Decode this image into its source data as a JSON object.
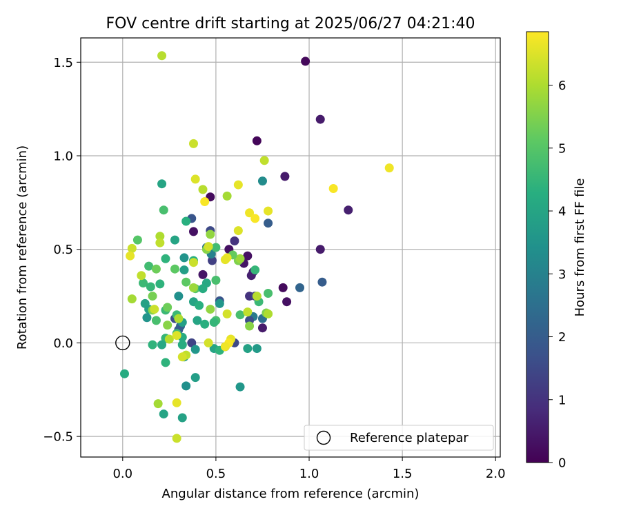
{
  "chart_data": {
    "type": "scatter",
    "title": "FOV centre drift starting at 2025/06/27 04:21:40",
    "xlabel": "Angular distance from reference (arcmin)",
    "ylabel": "Rotation from reference (arcmin)",
    "xlim": [
      -0.225,
      2.025
    ],
    "ylim": [
      -0.61,
      1.63
    ],
    "xticks": [
      0.0,
      0.5,
      1.0,
      1.5,
      2.0
    ],
    "xtick_labels": [
      "0.0",
      "0.5",
      "1.0",
      "1.5",
      "2.0"
    ],
    "yticks": [
      -0.5,
      0.0,
      0.5,
      1.0,
      1.5
    ],
    "ytick_labels": [
      "−0.5",
      "0.0",
      "0.5",
      "1.0",
      "1.5"
    ],
    "grid": true,
    "legend": {
      "placement": "lower-right",
      "label": "Reference platepar"
    },
    "reference_point": {
      "x": 0.0,
      "y": 0.0
    },
    "colorbar": {
      "label": "Hours from first FF file",
      "colormap": "viridis",
      "range": [
        0,
        6.85
      ],
      "ticks": [
        0,
        1,
        2,
        3,
        4,
        5,
        6
      ],
      "tick_labels": [
        "0",
        "1",
        "2",
        "3",
        "4",
        "5",
        "6"
      ]
    },
    "points": [
      {
        "x": 0.98,
        "y": 1.505,
        "h": 0.15
      },
      {
        "x": 1.06,
        "y": 1.195,
        "h": 0.5
      },
      {
        "x": 0.72,
        "y": 1.08,
        "h": 0.1
      },
      {
        "x": 0.87,
        "y": 0.89,
        "h": 0.5
      },
      {
        "x": 1.21,
        "y": 0.71,
        "h": 0.6
      },
      {
        "x": 0.47,
        "y": 0.78,
        "h": 0.2
      },
      {
        "x": 0.37,
        "y": 0.665,
        "h": 1.8
      },
      {
        "x": 0.38,
        "y": 0.595,
        "h": 0.3
      },
      {
        "x": 0.78,
        "y": 0.64,
        "h": 2.0
      },
      {
        "x": 0.47,
        "y": 0.6,
        "h": 1.5
      },
      {
        "x": 0.6,
        "y": 0.545,
        "h": 1.0
      },
      {
        "x": 1.06,
        "y": 0.5,
        "h": 0.5
      },
      {
        "x": 0.67,
        "y": 0.465,
        "h": 0.3
      },
      {
        "x": 0.65,
        "y": 0.425,
        "h": 0.4
      },
      {
        "x": 0.57,
        "y": 0.5,
        "h": 0.3
      },
      {
        "x": 0.48,
        "y": 0.44,
        "h": 1.3
      },
      {
        "x": 0.69,
        "y": 0.36,
        "h": 0.6
      },
      {
        "x": 0.7,
        "y": 0.38,
        "h": 0.6
      },
      {
        "x": 0.43,
        "y": 0.365,
        "h": 0.4
      },
      {
        "x": 0.86,
        "y": 0.295,
        "h": 0.2
      },
      {
        "x": 0.95,
        "y": 0.295,
        "h": 2.2
      },
      {
        "x": 1.07,
        "y": 0.325,
        "h": 2.0
      },
      {
        "x": 0.88,
        "y": 0.22,
        "h": 0.3
      },
      {
        "x": 0.68,
        "y": 0.25,
        "h": 1.0
      },
      {
        "x": 0.52,
        "y": 0.225,
        "h": 1.8
      },
      {
        "x": 0.7,
        "y": 0.14,
        "h": 2.8
      },
      {
        "x": 0.75,
        "y": 0.13,
        "h": 2.5
      },
      {
        "x": 0.75,
        "y": 0.08,
        "h": 0.5
      },
      {
        "x": 0.6,
        "y": 0.0,
        "h": 1.5
      },
      {
        "x": 0.55,
        "y": -0.02,
        "h": 2.0
      },
      {
        "x": 0.68,
        "y": 0.12,
        "h": 1.6
      },
      {
        "x": 0.71,
        "y": 0.25,
        "h": 1.3
      },
      {
        "x": 0.28,
        "y": 0.13,
        "h": 1.6
      },
      {
        "x": 0.31,
        "y": 0.09,
        "h": 2.2
      },
      {
        "x": 0.3,
        "y": 0.07,
        "h": 2.0
      },
      {
        "x": 0.37,
        "y": 0.0,
        "h": 1.4
      },
      {
        "x": 0.45,
        "y": 0.51,
        "h": 2.5
      },
      {
        "x": 0.475,
        "y": 0.475,
        "h": 3.0
      },
      {
        "x": 0.21,
        "y": 0.85,
        "h": 4.0
      },
      {
        "x": 0.75,
        "y": 0.865,
        "h": 3.3
      },
      {
        "x": 0.22,
        "y": 0.71,
        "h": 4.8
      },
      {
        "x": 0.34,
        "y": 0.65,
        "h": 4.3
      },
      {
        "x": 0.08,
        "y": 0.55,
        "h": 5.0
      },
      {
        "x": 0.28,
        "y": 0.55,
        "h": 4.0
      },
      {
        "x": 0.5,
        "y": 0.51,
        "h": 4.7
      },
      {
        "x": 0.23,
        "y": 0.45,
        "h": 4.4
      },
      {
        "x": 0.33,
        "y": 0.455,
        "h": 3.5
      },
      {
        "x": 0.38,
        "y": 0.44,
        "h": 4.3
      },
      {
        "x": 0.62,
        "y": 0.44,
        "h": 5.5
      },
      {
        "x": 0.63,
        "y": 0.45,
        "h": 5.8
      },
      {
        "x": 0.59,
        "y": 0.47,
        "h": 5.2
      },
      {
        "x": 0.45,
        "y": 0.5,
        "h": 5.6
      },
      {
        "x": 0.47,
        "y": 0.58,
        "h": 5.7
      },
      {
        "x": 0.14,
        "y": 0.41,
        "h": 4.7
      },
      {
        "x": 0.18,
        "y": 0.395,
        "h": 5.3
      },
      {
        "x": 0.28,
        "y": 0.395,
        "h": 5.1
      },
      {
        "x": 0.33,
        "y": 0.39,
        "h": 3.8
      },
      {
        "x": 0.71,
        "y": 0.39,
        "h": 4.5
      },
      {
        "x": 0.11,
        "y": 0.32,
        "h": 4.6
      },
      {
        "x": 0.15,
        "y": 0.3,
        "h": 4.5
      },
      {
        "x": 0.2,
        "y": 0.315,
        "h": 4.4
      },
      {
        "x": 0.34,
        "y": 0.325,
        "h": 5.1
      },
      {
        "x": 0.45,
        "y": 0.32,
        "h": 4.1
      },
      {
        "x": 0.5,
        "y": 0.335,
        "h": 4.8
      },
      {
        "x": 0.16,
        "y": 0.25,
        "h": 5.4
      },
      {
        "x": 0.3,
        "y": 0.25,
        "h": 3.4
      },
      {
        "x": 0.39,
        "y": 0.29,
        "h": 5.0
      },
      {
        "x": 0.43,
        "y": 0.29,
        "h": 4.2
      },
      {
        "x": 0.78,
        "y": 0.265,
        "h": 4.8
      },
      {
        "x": 0.12,
        "y": 0.21,
        "h": 3.9
      },
      {
        "x": 0.38,
        "y": 0.22,
        "h": 4.0
      },
      {
        "x": 0.41,
        "y": 0.2,
        "h": 4.3
      },
      {
        "x": 0.52,
        "y": 0.21,
        "h": 3.6
      },
      {
        "x": 0.14,
        "y": 0.18,
        "h": 3.8
      },
      {
        "x": 0.23,
        "y": 0.175,
        "h": 4.6
      },
      {
        "x": 0.16,
        "y": 0.175,
        "h": 5.5
      },
      {
        "x": 0.47,
        "y": 0.18,
        "h": 5.7
      },
      {
        "x": 0.63,
        "y": 0.15,
        "h": 4.8
      },
      {
        "x": 0.77,
        "y": 0.16,
        "h": 5.5
      },
      {
        "x": 0.24,
        "y": 0.19,
        "h": 5.3
      },
      {
        "x": 0.73,
        "y": 0.22,
        "h": 4.6
      },
      {
        "x": 0.13,
        "y": 0.135,
        "h": 3.5
      },
      {
        "x": 0.18,
        "y": 0.12,
        "h": 4.8
      },
      {
        "x": 0.29,
        "y": 0.15,
        "h": 4.6
      },
      {
        "x": 0.4,
        "y": 0.12,
        "h": 4.0
      },
      {
        "x": 0.5,
        "y": 0.12,
        "h": 4.8
      },
      {
        "x": 0.44,
        "y": 0.1,
        "h": 4.3
      },
      {
        "x": 0.49,
        "y": 0.11,
        "h": 4.5
      },
      {
        "x": 0.32,
        "y": 0.11,
        "h": 3.8
      },
      {
        "x": 0.24,
        "y": 0.095,
        "h": 5.6
      },
      {
        "x": 0.68,
        "y": 0.09,
        "h": 5.6
      },
      {
        "x": 0.23,
        "y": 0.025,
        "h": 4.5
      },
      {
        "x": 0.29,
        "y": 0.05,
        "h": 4.7
      },
      {
        "x": 0.32,
        "y": 0.03,
        "h": 4.2
      },
      {
        "x": 0.16,
        "y": -0.01,
        "h": 4.4
      },
      {
        "x": 0.21,
        "y": -0.01,
        "h": 4.1
      },
      {
        "x": 0.32,
        "y": -0.01,
        "h": 4.2
      },
      {
        "x": 0.49,
        "y": -0.03,
        "h": 4.0
      },
      {
        "x": 0.52,
        "y": -0.04,
        "h": 4.4
      },
      {
        "x": 0.39,
        "y": -0.035,
        "h": 3.6
      },
      {
        "x": 0.67,
        "y": -0.03,
        "h": 3.9
      },
      {
        "x": 0.72,
        "y": -0.03,
        "h": 3.7
      },
      {
        "x": 0.33,
        "y": -0.075,
        "h": 3.6
      },
      {
        "x": 0.01,
        "y": -0.165,
        "h": 4.2
      },
      {
        "x": 0.23,
        "y": -0.105,
        "h": 4.4
      },
      {
        "x": 0.39,
        "y": -0.185,
        "h": 3.8
      },
      {
        "x": 0.34,
        "y": -0.23,
        "h": 3.4
      },
      {
        "x": 0.63,
        "y": -0.235,
        "h": 3.6
      },
      {
        "x": 0.22,
        "y": -0.38,
        "h": 4.0
      },
      {
        "x": 0.32,
        "y": -0.4,
        "h": 3.9
      },
      {
        "x": 0.21,
        "y": 1.535,
        "h": 6.1
      },
      {
        "x": 0.38,
        "y": 1.065,
        "h": 6.3
      },
      {
        "x": 1.43,
        "y": 0.935,
        "h": 6.7
      },
      {
        "x": 0.76,
        "y": 0.975,
        "h": 6.2
      },
      {
        "x": 0.39,
        "y": 0.875,
        "h": 6.5
      },
      {
        "x": 0.43,
        "y": 0.82,
        "h": 6.1
      },
      {
        "x": 0.62,
        "y": 0.845,
        "h": 6.6
      },
      {
        "x": 1.13,
        "y": 0.825,
        "h": 6.8
      },
      {
        "x": 0.56,
        "y": 0.785,
        "h": 5.9
      },
      {
        "x": 0.44,
        "y": 0.755,
        "h": 6.8
      },
      {
        "x": 0.78,
        "y": 0.705,
        "h": 6.6
      },
      {
        "x": 0.68,
        "y": 0.695,
        "h": 6.7
      },
      {
        "x": 0.71,
        "y": 0.665,
        "h": 6.8
      },
      {
        "x": 0.62,
        "y": 0.6,
        "h": 6.5
      },
      {
        "x": 0.2,
        "y": 0.57,
        "h": 6.0
      },
      {
        "x": 0.2,
        "y": 0.535,
        "h": 6.2
      },
      {
        "x": 0.05,
        "y": 0.505,
        "h": 6.3
      },
      {
        "x": 0.46,
        "y": 0.515,
        "h": 6.4
      },
      {
        "x": 0.04,
        "y": 0.465,
        "h": 6.6
      },
      {
        "x": 0.56,
        "y": 0.455,
        "h": 6.7
      },
      {
        "x": 0.55,
        "y": 0.445,
        "h": 6.6
      },
      {
        "x": 0.38,
        "y": 0.43,
        "h": 6.3
      },
      {
        "x": 0.1,
        "y": 0.36,
        "h": 6.2
      },
      {
        "x": 0.38,
        "y": 0.295,
        "h": 5.8
      },
      {
        "x": 0.05,
        "y": 0.235,
        "h": 5.9
      },
      {
        "x": 0.72,
        "y": 0.25,
        "h": 6.1
      },
      {
        "x": 0.17,
        "y": 0.18,
        "h": 6.3
      },
      {
        "x": 0.78,
        "y": 0.155,
        "h": 6.0
      },
      {
        "x": 0.56,
        "y": 0.155,
        "h": 6.4
      },
      {
        "x": 0.67,
        "y": 0.165,
        "h": 6.2
      },
      {
        "x": 0.3,
        "y": 0.13,
        "h": 6.0
      },
      {
        "x": 0.25,
        "y": 0.02,
        "h": 6.1
      },
      {
        "x": 0.29,
        "y": 0.04,
        "h": 6.5
      },
      {
        "x": 0.46,
        "y": 0.0,
        "h": 6.4
      },
      {
        "x": 0.58,
        "y": 0.02,
        "h": 6.6
      },
      {
        "x": 0.57,
        "y": 0.0,
        "h": 6.8
      },
      {
        "x": 0.55,
        "y": -0.02,
        "h": 6.7
      },
      {
        "x": 0.34,
        "y": -0.065,
        "h": 6.2
      },
      {
        "x": 0.32,
        "y": -0.075,
        "h": 6.4
      },
      {
        "x": 0.19,
        "y": -0.325,
        "h": 5.9
      },
      {
        "x": 0.29,
        "y": -0.32,
        "h": 6.6
      },
      {
        "x": 0.29,
        "y": -0.51,
        "h": 6.3
      }
    ]
  }
}
